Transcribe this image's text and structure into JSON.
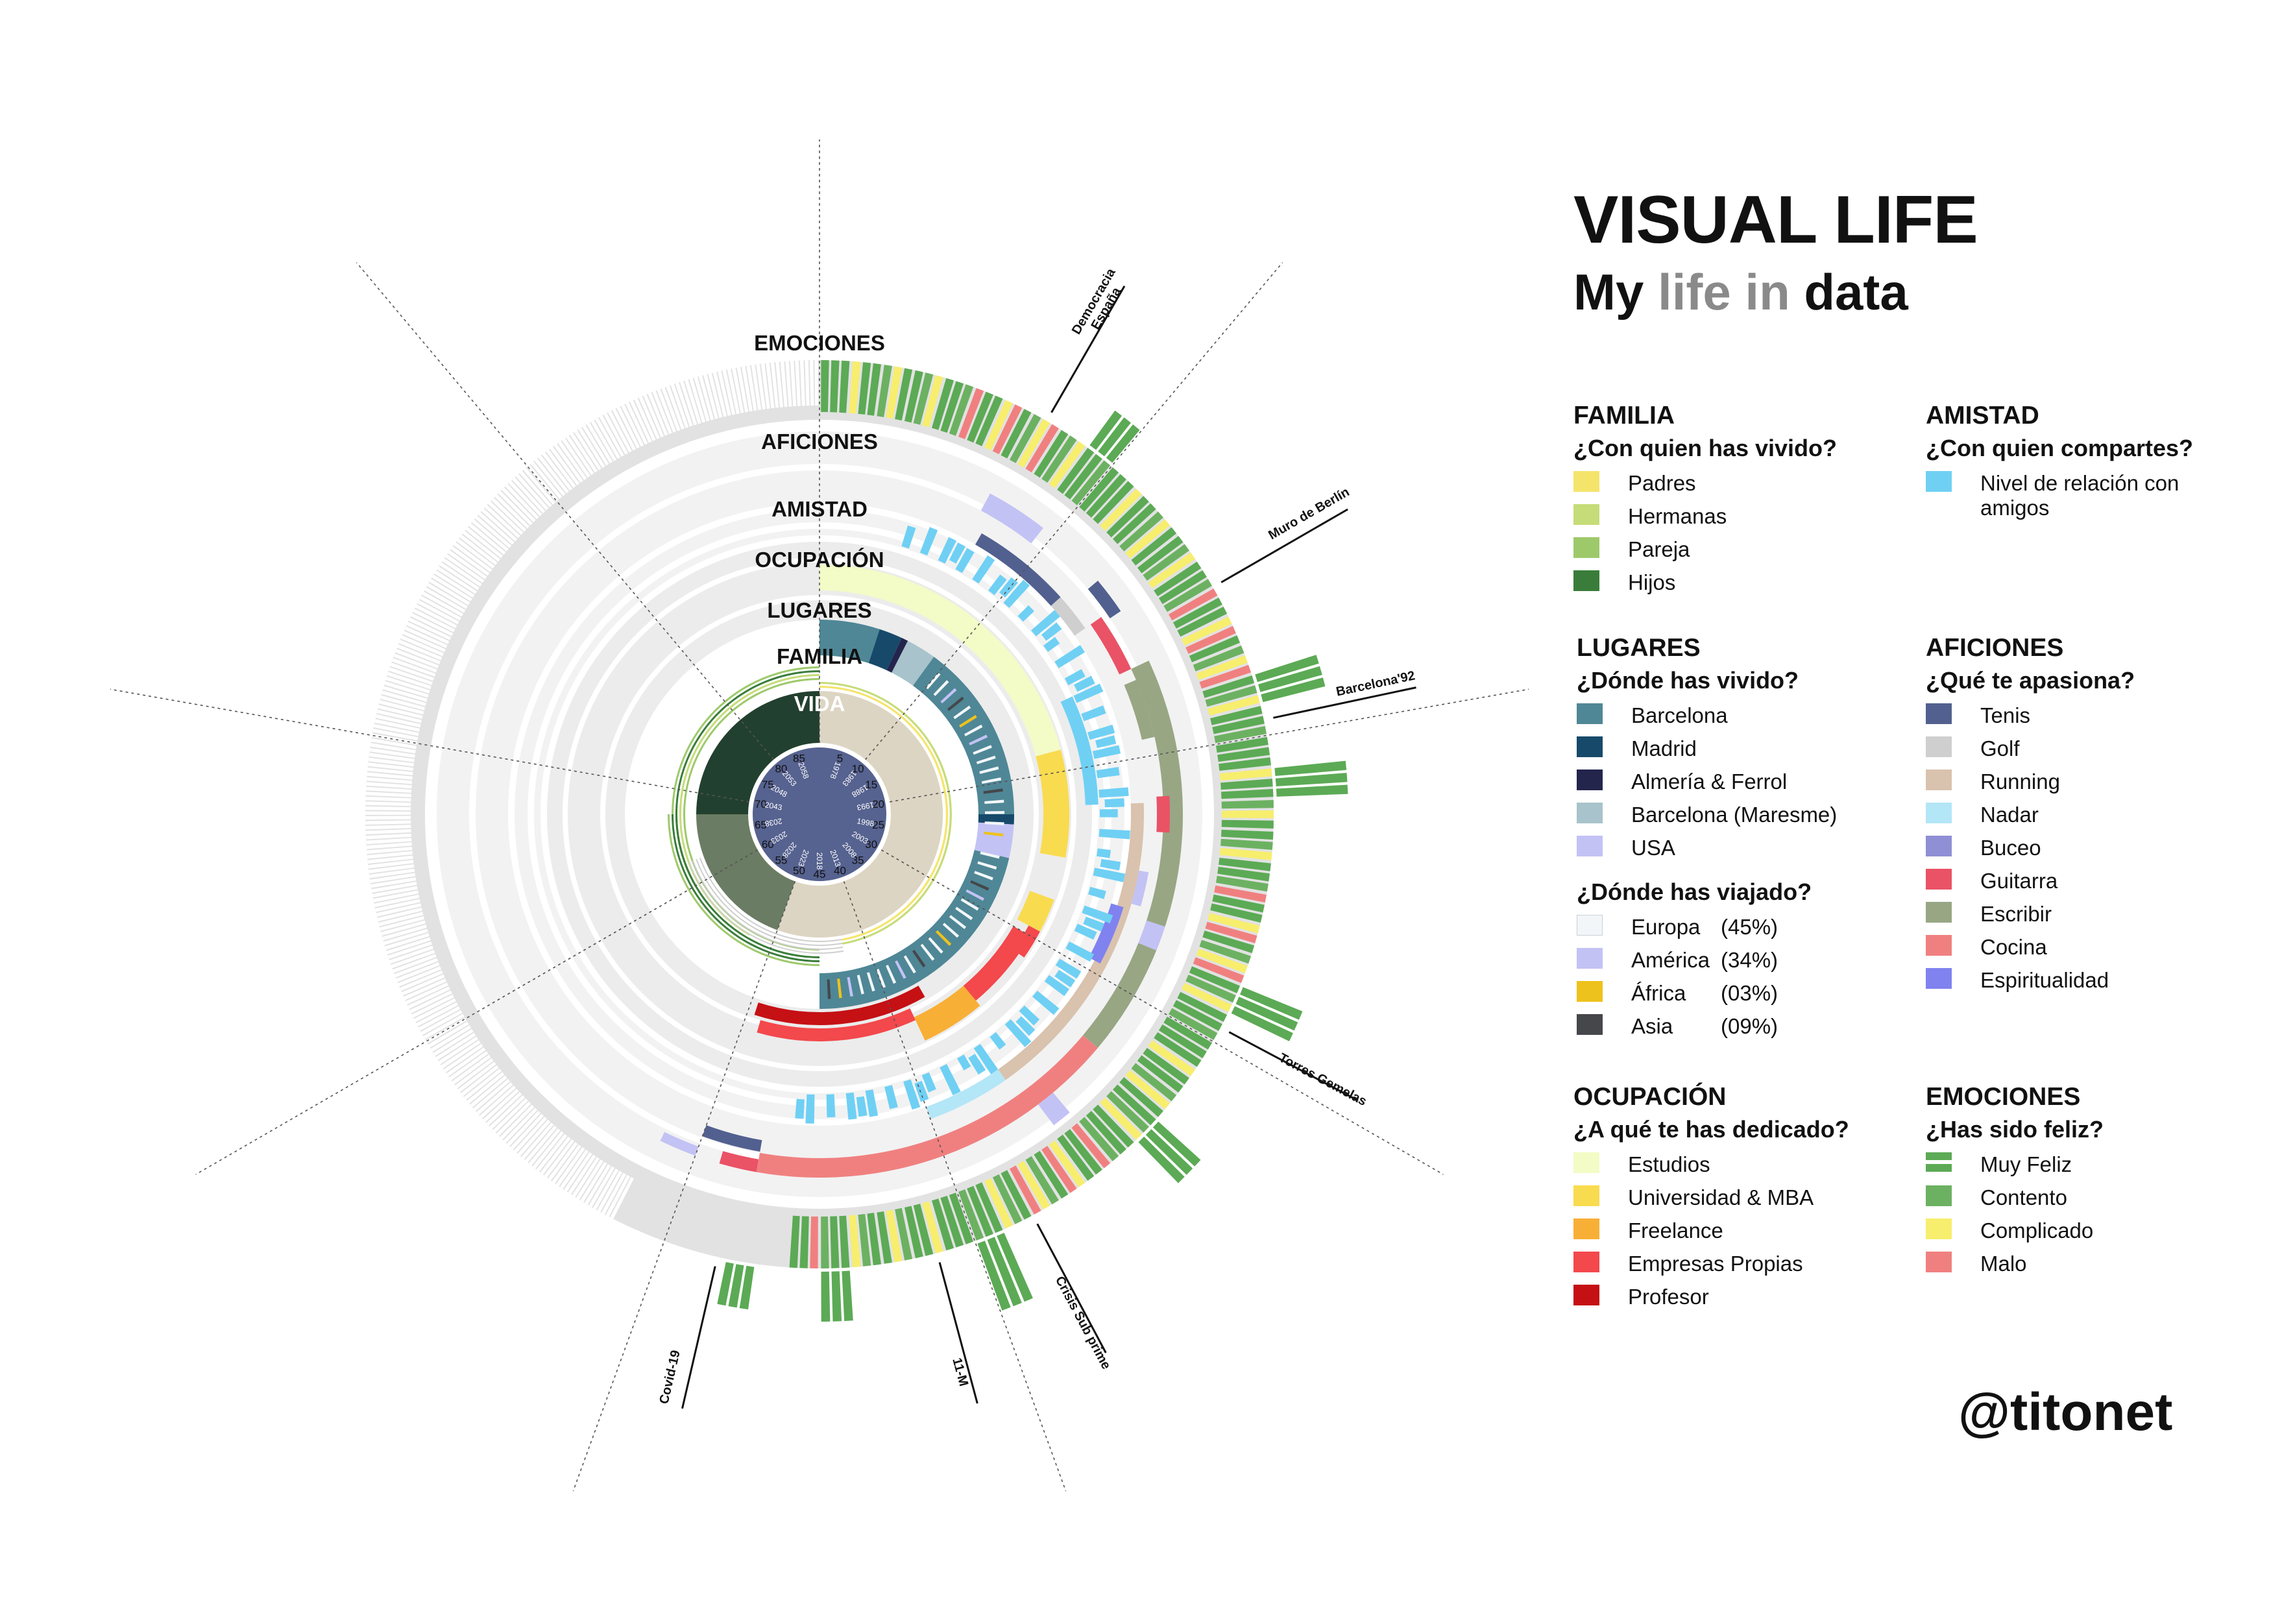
{
  "title": "VISUAL LIFE",
  "subtitle": {
    "part1": "My",
    "part2": "life in",
    "part3": "data"
  },
  "handle": "@titonet",
  "rings": {
    "emociones": "EMOCIONES",
    "aficiones": "AFICIONES",
    "amistad": "AMISTAD",
    "ocupacion": "OCUPACIÓN",
    "lugares": "LUGARES",
    "familia": "FAMILIA",
    "vida": "VIDA"
  },
  "ages": [
    "5",
    "10",
    "15",
    "20",
    "25",
    "30",
    "35",
    "40",
    "45",
    "50",
    "55",
    "60",
    "65",
    "70",
    "75",
    "80",
    "85"
  ],
  "years": [
    "1978",
    "1983",
    "1988",
    "1993",
    "1998",
    "2003",
    "2008",
    "2013",
    "2018",
    "2023",
    "2028",
    "2033",
    "2038",
    "2043",
    "2048",
    "2053",
    "2058"
  ],
  "events": [
    {
      "label": "Democracia España",
      "line1": "Democracia",
      "line2": "España",
      "year": 1978
    },
    {
      "label": "Muro de Berlín",
      "line1": "Muro de Berlín",
      "line2": "",
      "year": 1989
    },
    {
      "label": "Barcelona'92",
      "line1": "Barcelona'92",
      "line2": "",
      "year": 1992
    },
    {
      "label": "Torres Gemelas",
      "line1": "Torres Gemelas",
      "line2": "",
      "year": 2001
    },
    {
      "label": "Crisis Sub prime",
      "line1": "Crisis Sub prime",
      "line2": "",
      "year": 2008
    },
    {
      "label": "11-M",
      "line1": "11-M",
      "line2": "",
      "year": 2004
    },
    {
      "label": "Covid-19",
      "line1": "Covid-19",
      "line2": "",
      "year": 2020
    }
  ],
  "legend": {
    "familia": {
      "head": "FAMILIA",
      "question": "¿Con quien has vivido?",
      "items": [
        {
          "label": "Padres",
          "color": "#f5e46b"
        },
        {
          "label": "Hermanas",
          "color": "#c6dc78"
        },
        {
          "label": "Pareja",
          "color": "#9ec96b"
        },
        {
          "label": "Hijos",
          "color": "#3a7d3a"
        }
      ]
    },
    "amistad": {
      "head": "AMISTAD",
      "question": "¿Con quien compartes?",
      "items": [
        {
          "label": "Nivel de relación con amigos",
          "color": "#6fd0f4"
        }
      ]
    },
    "lugares": {
      "head": "LUGARES",
      "question": "¿Dónde has vivido?",
      "items": [
        {
          "label": "Barcelona",
          "color": "#4f8796"
        },
        {
          "label": "Madrid",
          "color": "#174a6a"
        },
        {
          "label": "Almería & Ferrol",
          "color": "#24254d"
        },
        {
          "label": "Barcelona (Maresme)",
          "color": "#a8c3cb"
        },
        {
          "label": "USA",
          "color": "#c3c2f5"
        }
      ],
      "question2": "¿Dónde has viajado?",
      "travel": [
        {
          "label": "Europa",
          "pct": "(45%)",
          "color": "#f2f6f9"
        },
        {
          "label": "América",
          "pct": "(34%)",
          "color": "#c3c2f5"
        },
        {
          "label": "África",
          "pct": "(03%)",
          "color": "#eec21c"
        },
        {
          "label": "Asia",
          "pct": "(09%)",
          "color": "#45474b"
        }
      ]
    },
    "aficiones": {
      "head": "AFICIONES",
      "question": "¿Qué te apasiona?",
      "items": [
        {
          "label": "Tenis",
          "color": "#52608f"
        },
        {
          "label": "Golf",
          "color": "#cfcfcf"
        },
        {
          "label": "Running",
          "color": "#d9c2ae"
        },
        {
          "label": "Nadar",
          "color": "#b3e6f7"
        },
        {
          "label": "Buceo",
          "color": "#8f8fd6"
        },
        {
          "label": "Guitarra",
          "color": "#ea5266"
        },
        {
          "label": "Escribir",
          "color": "#98a684"
        },
        {
          "label": "Cocina",
          "color": "#f08080"
        },
        {
          "label": "Espiritualidad",
          "color": "#8082ef"
        }
      ]
    },
    "ocupacion": {
      "head": "OCUPACIÓN",
      "question": "¿A qué te has dedicado?",
      "items": [
        {
          "label": "Estudios",
          "color": "#f3fbc6"
        },
        {
          "label": "Universidad & MBA",
          "color": "#f9db4f"
        },
        {
          "label": "Freelance",
          "color": "#f8af36"
        },
        {
          "label": "Empresas Propias",
          "color": "#f3484c"
        },
        {
          "label": "Profesor",
          "color": "#c51014"
        }
      ]
    },
    "emociones": {
      "head": "EMOCIONES",
      "question": "¿Has sido feliz?",
      "items": [
        {
          "label": "Muy Feliz",
          "color": "#5caa55"
        },
        {
          "label": "Contento",
          "color": "#6cb161"
        },
        {
          "label": "Complicado",
          "color": "#f7ee6e"
        },
        {
          "label": "Malo",
          "color": "#f08080"
        }
      ]
    }
  }
}
